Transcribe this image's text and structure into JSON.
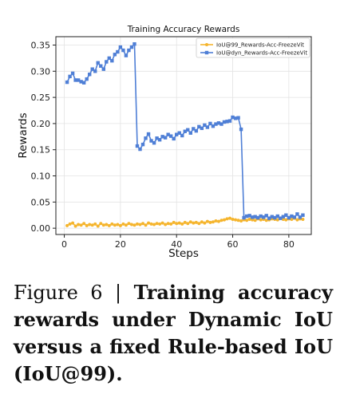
{
  "chart_data": {
    "type": "line",
    "title": "Training Accuracy Rewards",
    "xlabel": "Steps",
    "ylabel": "Rewards",
    "xlim": [
      -3,
      88
    ],
    "ylim": [
      -0.012,
      0.366
    ],
    "xticks": [
      "0",
      "20",
      "40",
      "60",
      "80"
    ],
    "yticks": [
      "0.00",
      "0.05",
      "0.10",
      "0.15",
      "0.20",
      "0.25",
      "0.30",
      "0.35"
    ],
    "legend_position": "top-right",
    "grid": true,
    "series": [
      {
        "name": "IoU@99_Rewards-Acc-FreezeVit",
        "color": "#f5b52e",
        "marker": "circle",
        "x": [
          1,
          2,
          3,
          4,
          5,
          6,
          7,
          8,
          9,
          10,
          11,
          12,
          13,
          14,
          15,
          16,
          17,
          18,
          19,
          20,
          21,
          22,
          23,
          24,
          25,
          26,
          27,
          28,
          29,
          30,
          31,
          32,
          33,
          34,
          35,
          36,
          37,
          38,
          39,
          40,
          41,
          42,
          43,
          44,
          45,
          46,
          47,
          48,
          49,
          50,
          51,
          52,
          53,
          54,
          55,
          56,
          57,
          58,
          59,
          60,
          61,
          62,
          63,
          64,
          65,
          66,
          67,
          68,
          69,
          70,
          71,
          72,
          73,
          74,
          75,
          76,
          77,
          78,
          79,
          80,
          81,
          82,
          83,
          84,
          85
        ],
        "y": [
          0.005,
          0.008,
          0.01,
          0.004,
          0.007,
          0.006,
          0.009,
          0.005,
          0.007,
          0.006,
          0.008,
          0.004,
          0.009,
          0.006,
          0.007,
          0.005,
          0.008,
          0.006,
          0.007,
          0.005,
          0.008,
          0.006,
          0.009,
          0.007,
          0.006,
          0.008,
          0.007,
          0.009,
          0.006,
          0.01,
          0.008,
          0.007,
          0.009,
          0.008,
          0.01,
          0.007,
          0.009,
          0.008,
          0.011,
          0.009,
          0.01,
          0.008,
          0.011,
          0.009,
          0.012,
          0.01,
          0.011,
          0.009,
          0.012,
          0.01,
          0.013,
          0.011,
          0.012,
          0.014,
          0.013,
          0.015,
          0.016,
          0.018,
          0.019,
          0.017,
          0.016,
          0.015,
          0.014,
          0.016,
          0.015,
          0.017,
          0.016,
          0.015,
          0.018,
          0.016,
          0.017,
          0.015,
          0.016,
          0.018,
          0.017,
          0.016,
          0.019,
          0.017,
          0.016,
          0.018,
          0.017,
          0.019,
          0.016,
          0.018,
          0.017
        ]
      },
      {
        "name": "IoU@dyn_Rewards-Acc-FreezeVit",
        "color": "#4f7fd6",
        "marker": "square",
        "x": [
          1,
          2,
          3,
          4,
          5,
          6,
          7,
          8,
          9,
          10,
          11,
          12,
          13,
          14,
          15,
          16,
          17,
          18,
          19,
          20,
          21,
          22,
          23,
          24,
          25,
          26,
          27,
          28,
          29,
          30,
          31,
          32,
          33,
          34,
          35,
          36,
          37,
          38,
          39,
          40,
          41,
          42,
          43,
          44,
          45,
          46,
          47,
          48,
          49,
          50,
          51,
          52,
          53,
          54,
          55,
          56,
          57,
          58,
          59,
          60,
          61,
          62,
          63,
          64,
          65,
          66,
          67,
          68,
          69,
          70,
          71,
          72,
          73,
          74,
          75,
          76,
          77,
          78,
          79,
          80,
          81,
          82,
          83,
          84,
          85
        ],
        "y": [
          0.279,
          0.29,
          0.296,
          0.283,
          0.283,
          0.28,
          0.278,
          0.285,
          0.294,
          0.304,
          0.3,
          0.316,
          0.31,
          0.304,
          0.318,
          0.325,
          0.32,
          0.332,
          0.337,
          0.346,
          0.34,
          0.33,
          0.34,
          0.346,
          0.352,
          0.157,
          0.151,
          0.16,
          0.172,
          0.18,
          0.167,
          0.163,
          0.172,
          0.169,
          0.175,
          0.173,
          0.179,
          0.176,
          0.171,
          0.179,
          0.182,
          0.177,
          0.185,
          0.188,
          0.182,
          0.19,
          0.186,
          0.194,
          0.191,
          0.197,
          0.193,
          0.2,
          0.195,
          0.199,
          0.201,
          0.199,
          0.203,
          0.204,
          0.205,
          0.212,
          0.21,
          0.211,
          0.189,
          0.02,
          0.023,
          0.024,
          0.021,
          0.022,
          0.02,
          0.023,
          0.021,
          0.024,
          0.019,
          0.022,
          0.02,
          0.023,
          0.019,
          0.022,
          0.025,
          0.02,
          0.023,
          0.021,
          0.027,
          0.021,
          0.025
        ]
      }
    ]
  },
  "caption": {
    "lead": "Figure 6 | ",
    "bold": "Training accuracy rewards under Dynamic IoU versus a fixed Rule-based IoU (IoU@99)."
  }
}
